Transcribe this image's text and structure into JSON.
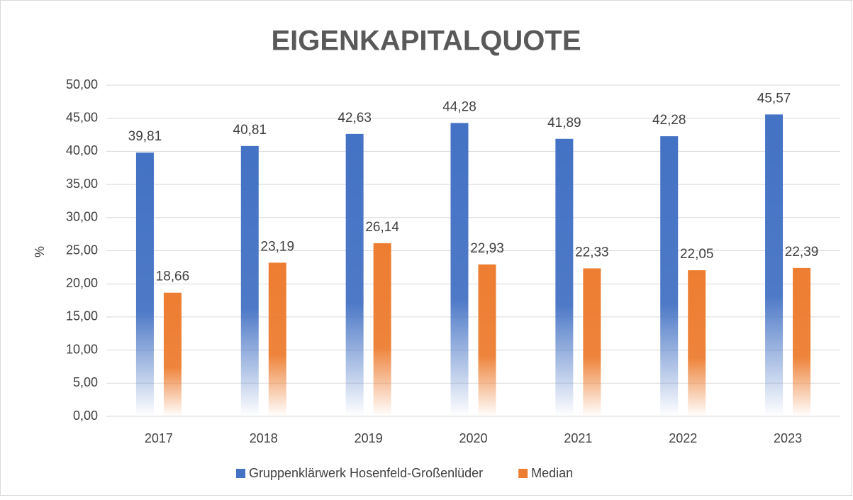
{
  "chart_data": {
    "type": "bar",
    "title": "EIGENKAPITALQUOTE",
    "y_label": "%",
    "categories": [
      "2017",
      "2018",
      "2019",
      "2020",
      "2021",
      "2022",
      "2023"
    ],
    "series": [
      {
        "name": "Gruppenklärwerk Hosenfeld-Großenlüder",
        "color": "#4472c4",
        "values": [
          39.81,
          40.81,
          42.63,
          44.28,
          41.89,
          42.28,
          45.57
        ],
        "value_labels": [
          "39,81",
          "40,81",
          "42,63",
          "44,28",
          "41,89",
          "42,28",
          "45,57"
        ]
      },
      {
        "name": "Median",
        "color": "#ed7d31",
        "values": [
          18.66,
          23.19,
          26.14,
          22.93,
          22.33,
          22.05,
          22.39
        ],
        "value_labels": [
          "18,66",
          "23,19",
          "26,14",
          "22,93",
          "22,33",
          "22,05",
          "22,39"
        ]
      }
    ],
    "ylim": [
      0,
      50
    ],
    "yticks": [
      {
        "value": 0,
        "label": "0,00"
      },
      {
        "value": 5,
        "label": "5,00"
      },
      {
        "value": 10,
        "label": "10,00"
      },
      {
        "value": 15,
        "label": "15,00"
      },
      {
        "value": 20,
        "label": "20,00"
      },
      {
        "value": 25,
        "label": "25,00"
      },
      {
        "value": 30,
        "label": "30,00"
      },
      {
        "value": 35,
        "label": "35,00"
      },
      {
        "value": 40,
        "label": "40,00"
      },
      {
        "value": 45,
        "label": "45,00"
      },
      {
        "value": 50,
        "label": "50,00"
      }
    ],
    "grid": true,
    "legend": "bottom"
  }
}
